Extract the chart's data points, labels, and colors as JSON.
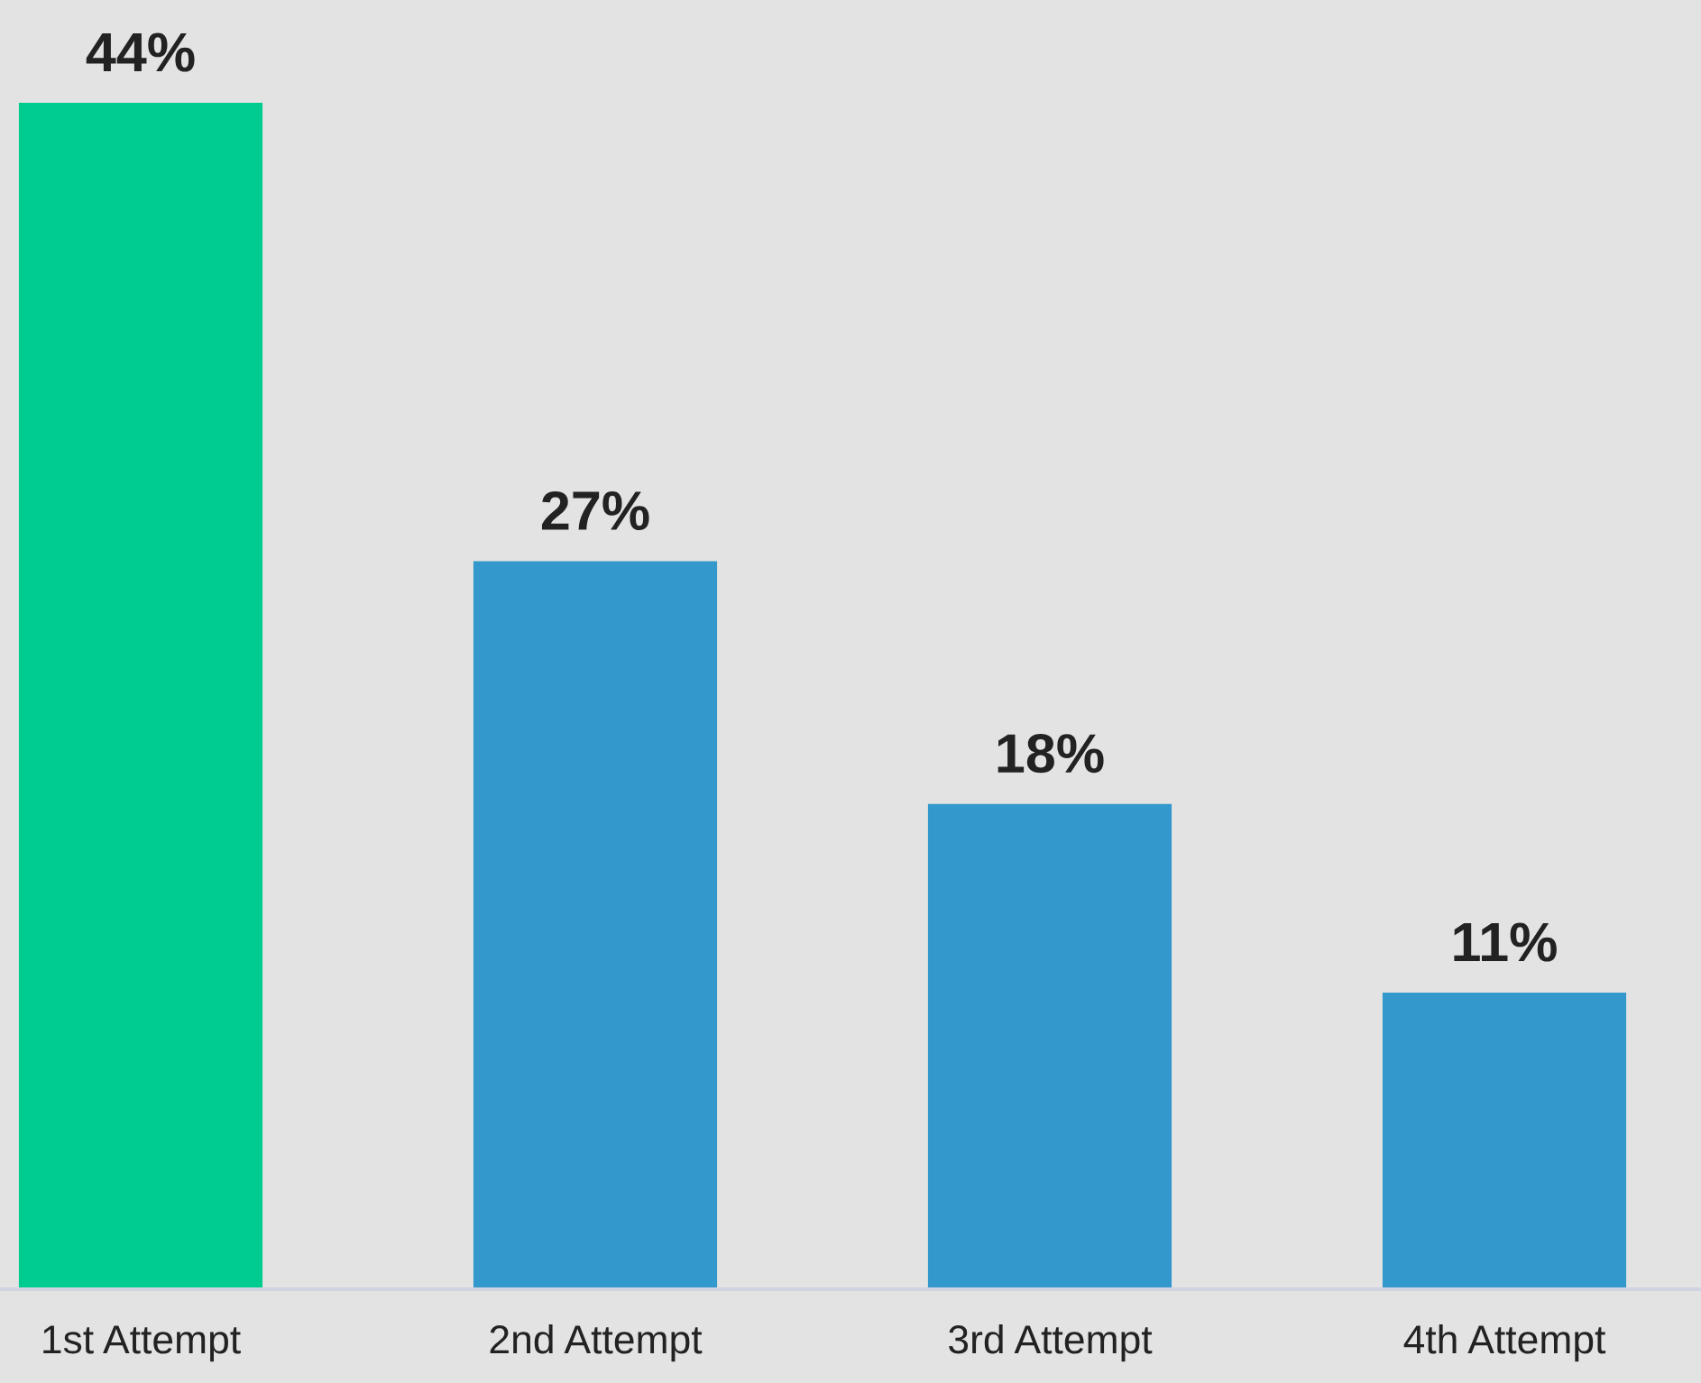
{
  "chart_data": {
    "type": "bar",
    "categories": [
      "1st Attempt",
      "2nd Attempt",
      "3rd Attempt",
      "4th Attempt"
    ],
    "values": [
      44,
      27,
      18,
      11
    ],
    "colors": [
      "#00cc8f",
      "#3399cc",
      "#3399cc",
      "#3399cc"
    ],
    "value_labels": [
      "44%",
      "27%",
      "18%",
      "11%"
    ],
    "grid": false,
    "legend": false
  }
}
